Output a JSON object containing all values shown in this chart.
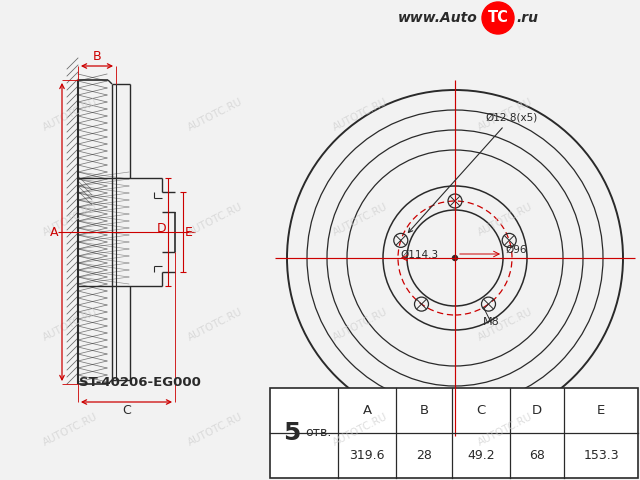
{
  "bg_color": "#f2f2f2",
  "line_color": "#2a2a2a",
  "red_color": "#cc0000",
  "watermark_color": "#cccccc",
  "part_number": "ST-40206-EG000",
  "table_headers": [
    "A",
    "B",
    "C",
    "D",
    "E"
  ],
  "table_values": [
    "319.6",
    "28",
    "49.2",
    "68",
    "153.3"
  ],
  "ann_bolt": "Ø12.8(x5)",
  "ann_center": "Ø96",
  "ann_pcd": "Ø114.3",
  "ann_thread": "M8",
  "logo_www": "www.Auto",
  "logo_tc": "TC",
  "logo_ru": ".ru"
}
